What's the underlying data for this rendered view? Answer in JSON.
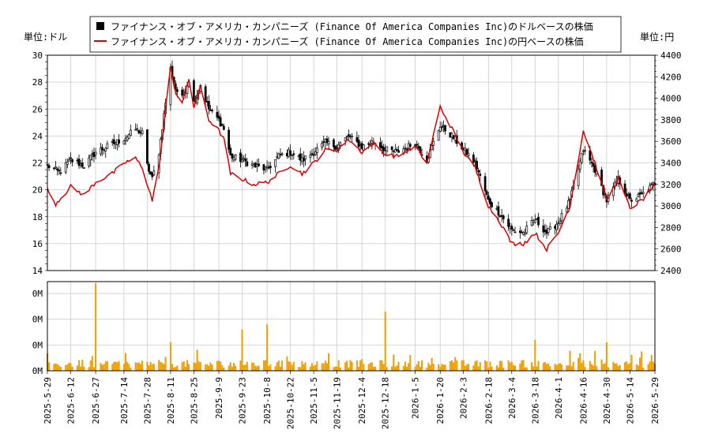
{
  "chart_data": [
    {
      "type": "candlestick+line",
      "legend": {
        "placement": "top-center",
        "entries": [
          {
            "label": "ファイナンス・オブ・アメリカ・カンパニーズ (Finance Of America Companies Inc)のドルベースの株価",
            "color": "#000000",
            "marker": "square"
          },
          {
            "label": "ファイナンス・オブ・アメリカ・カンパニーズ (Finance Of America Companies Inc)の円ベースの株価",
            "color": "#dd0000",
            "marker": "line"
          }
        ]
      },
      "left_unit_label": "単位:ドル",
      "right_unit_label": "単位:円",
      "y_left": {
        "min": 14,
        "max": 30,
        "ticks": [
          14,
          16,
          18,
          20,
          22,
          24,
          26,
          28,
          30
        ]
      },
      "y_right": {
        "min": 2400,
        "max": 4400,
        "ticks": [
          2400,
          2600,
          2800,
          3000,
          3200,
          3400,
          3600,
          3800,
          4000,
          4200,
          4400
        ]
      },
      "grid": true,
      "date_ticks": [
        "2025-5-29",
        "2025-6-12",
        "2025-6-27",
        "2025-7-14",
        "2025-7-28",
        "2025-8-11",
        "2025-8-25",
        "2025-9-9",
        "2025-9-23",
        "2025-10-8",
        "2025-10-22",
        "2025-11-5",
        "2025-11-19",
        "2025-12-4",
        "2025-12-18",
        "2026-1-5",
        "2026-1-20",
        "2026-2-3",
        "2026-2-18",
        "2026-3-4",
        "2026-3-18",
        "2026-4-1",
        "2026-4-16",
        "2026-4-30",
        "2026-5-14",
        "2026-5-29"
      ],
      "usd_close_keypoints": [
        [
          "2025-5-29",
          21.8
        ],
        [
          "2025-6-5",
          21.3
        ],
        [
          "2025-6-12",
          22.2
        ],
        [
          "2025-6-20",
          21.8
        ],
        [
          "2025-6-27",
          22.8
        ],
        [
          "2025-7-7",
          23.4
        ],
        [
          "2025-7-14",
          23.8
        ],
        [
          "2025-7-21",
          24.5
        ],
        [
          "2025-7-25",
          24.2
        ],
        [
          "2025-7-28",
          21.8
        ],
        [
          "2025-7-31",
          20.8
        ],
        [
          "2025-8-4",
          22.8
        ],
        [
          "2025-8-8",
          26.5
        ],
        [
          "2025-8-11",
          29.0
        ],
        [
          "2025-8-14",
          27.5
        ],
        [
          "2025-8-18",
          26.8
        ],
        [
          "2025-8-22",
          28.2
        ],
        [
          "2025-8-25",
          26.5
        ],
        [
          "2025-8-29",
          27.8
        ],
        [
          "2025-9-3",
          26.0
        ],
        [
          "2025-9-9",
          25.2
        ],
        [
          "2025-9-12",
          24.5
        ],
        [
          "2025-9-16",
          22.5
        ],
        [
          "2025-9-23",
          22.2
        ],
        [
          "2025-9-30",
          21.8
        ],
        [
          "2025-10-8",
          21.5
        ],
        [
          "2025-10-15",
          22.5
        ],
        [
          "2025-10-22",
          22.8
        ],
        [
          "2025-10-29",
          22.2
        ],
        [
          "2025-11-5",
          22.8
        ],
        [
          "2025-11-12",
          23.5
        ],
        [
          "2025-11-19",
          23.2
        ],
        [
          "2025-11-26",
          24.0
        ],
        [
          "2025-12-4",
          23.2
        ],
        [
          "2025-12-11",
          23.6
        ],
        [
          "2025-12-18",
          23.0
        ],
        [
          "2025-12-25",
          22.8
        ],
        [
          "2026-1-5",
          23.5
        ],
        [
          "2026-1-12",
          22.2
        ],
        [
          "2026-1-20",
          24.8
        ],
        [
          "2026-1-27",
          24.0
        ],
        [
          "2026-2-3",
          23.0
        ],
        [
          "2026-2-10",
          22.0
        ],
        [
          "2026-2-18",
          19.2
        ],
        [
          "2026-2-25",
          18.2
        ],
        [
          "2026-3-4",
          17.0
        ],
        [
          "2026-3-11",
          16.8
        ],
        [
          "2026-3-18",
          17.8
        ],
        [
          "2026-3-25",
          16.8
        ],
        [
          "2026-4-1",
          17.6
        ],
        [
          "2026-4-8",
          19.2
        ],
        [
          "2026-4-16",
          23.0
        ],
        [
          "2026-4-23",
          21.5
        ],
        [
          "2026-4-30",
          19.2
        ],
        [
          "2026-5-7",
          20.8
        ],
        [
          "2026-5-14",
          19.2
        ],
        [
          "2026-5-21",
          19.6
        ],
        [
          "2026-5-29",
          20.5
        ]
      ],
      "jpy_close_keypoints": [
        [
          "2025-5-29",
          3150
        ],
        [
          "2025-6-3",
          3020
        ],
        [
          "2025-6-12",
          3180
        ],
        [
          "2025-6-20",
          3100
        ],
        [
          "2025-6-27",
          3220
        ],
        [
          "2025-7-7",
          3300
        ],
        [
          "2025-7-14",
          3400
        ],
        [
          "2025-7-21",
          3440
        ],
        [
          "2025-7-25",
          3360
        ],
        [
          "2025-7-31",
          3050
        ],
        [
          "2025-8-4",
          3350
        ],
        [
          "2025-8-8",
          3900
        ],
        [
          "2025-8-11",
          4280
        ],
        [
          "2025-8-14",
          4060
        ],
        [
          "2025-8-18",
          3960
        ],
        [
          "2025-8-22",
          4180
        ],
        [
          "2025-8-25",
          3920
        ],
        [
          "2025-8-29",
          4100
        ],
        [
          "2025-9-3",
          3800
        ],
        [
          "2025-9-9",
          3700
        ],
        [
          "2025-9-12",
          3620
        ],
        [
          "2025-9-16",
          3300
        ],
        [
          "2025-9-23",
          3250
        ],
        [
          "2025-9-30",
          3200
        ],
        [
          "2025-10-8",
          3220
        ],
        [
          "2025-10-15",
          3300
        ],
        [
          "2025-10-22",
          3380
        ],
        [
          "2025-10-29",
          3300
        ],
        [
          "2025-11-5",
          3400
        ],
        [
          "2025-11-12",
          3520
        ],
        [
          "2025-11-19",
          3520
        ],
        [
          "2025-11-26",
          3620
        ],
        [
          "2025-12-4",
          3500
        ],
        [
          "2025-12-11",
          3580
        ],
        [
          "2025-12-18",
          3480
        ],
        [
          "2025-12-25",
          3460
        ],
        [
          "2026-1-5",
          3550
        ],
        [
          "2026-1-12",
          3400
        ],
        [
          "2026-1-20",
          3920
        ],
        [
          "2026-1-27",
          3720
        ],
        [
          "2026-2-3",
          3500
        ],
        [
          "2026-2-10",
          3350
        ],
        [
          "2026-2-18",
          3000
        ],
        [
          "2026-2-25",
          2850
        ],
        [
          "2026-3-4",
          2650
        ],
        [
          "2026-3-11",
          2650
        ],
        [
          "2026-3-18",
          2750
        ],
        [
          "2026-3-25",
          2600
        ],
        [
          "2026-4-1",
          2750
        ],
        [
          "2026-4-8",
          3000
        ],
        [
          "2026-4-16",
          3700
        ],
        [
          "2026-4-23",
          3400
        ],
        [
          "2026-4-30",
          3050
        ],
        [
          "2026-5-7",
          3250
        ],
        [
          "2026-5-14",
          2980
        ],
        [
          "2026-5-21",
          3050
        ],
        [
          "2026-5-29",
          3200
        ]
      ]
    },
    {
      "type": "bar",
      "series_label": "volume",
      "color": "#f0a000",
      "y_ticks": [
        {
          "value": 0,
          "label": "0M"
        },
        {
          "value": 1,
          "label": "0M"
        },
        {
          "value": 2,
          "label": "0M"
        },
        {
          "value": 3,
          "label": "0M"
        }
      ],
      "y_max": 3.4,
      "spikes": [
        [
          "2025-6-27",
          3.4
        ],
        [
          "2025-12-18",
          2.3
        ],
        [
          "2025-10-8",
          1.8
        ],
        [
          "2025-9-23",
          1.6
        ],
        [
          "2025-8-11",
          1.1
        ],
        [
          "2026-4-30",
          1.1
        ],
        [
          "2026-3-18",
          1.2
        ]
      ]
    }
  ]
}
